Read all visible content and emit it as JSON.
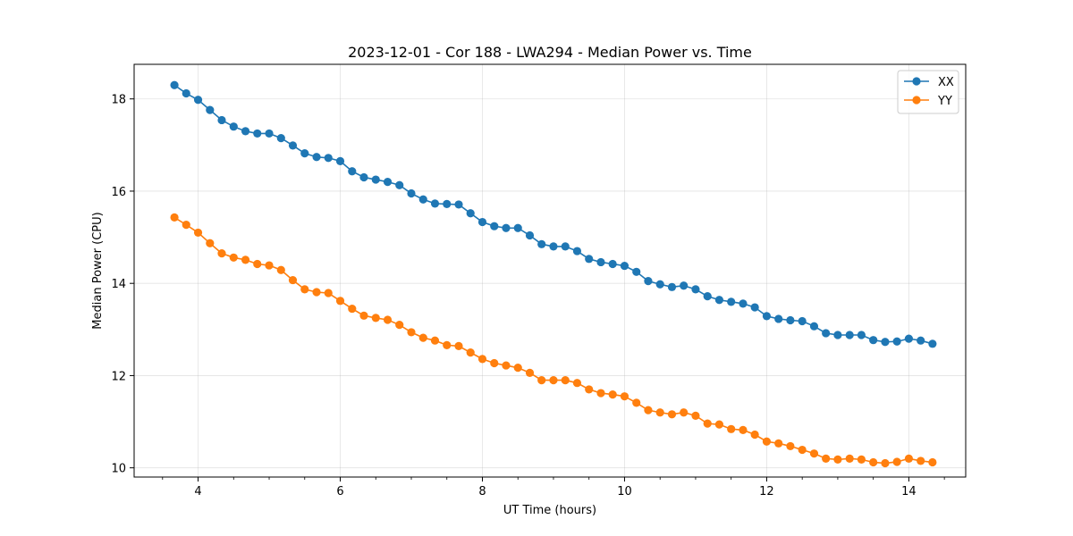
{
  "chart_data": {
    "type": "line",
    "title": "2023-12-01 - Cor 188 - LWA294 - Median Power vs. Time",
    "xlabel": "UT Time (hours)",
    "ylabel": "Median Power (CPU)",
    "xlim": [
      3.1,
      14.8
    ],
    "ylim": [
      9.8,
      18.75
    ],
    "xticks": [
      4,
      6,
      8,
      10,
      12,
      14
    ],
    "xtick_labels": [
      "4",
      "6",
      "8",
      "10",
      "12",
      "14"
    ],
    "yticks": [
      10,
      12,
      14,
      16,
      18
    ],
    "ytick_labels": [
      "10",
      "12",
      "14",
      "16",
      "18"
    ],
    "grid": true,
    "legend_position": "top-right",
    "x": [
      3.667,
      3.833,
      4.0,
      4.167,
      4.333,
      4.5,
      4.667,
      4.833,
      5.0,
      5.167,
      5.333,
      5.5,
      5.667,
      5.833,
      6.0,
      6.167,
      6.333,
      6.5,
      6.667,
      6.833,
      7.0,
      7.167,
      7.333,
      7.5,
      7.667,
      7.833,
      8.0,
      8.167,
      8.333,
      8.5,
      8.667,
      8.833,
      9.0,
      9.167,
      9.333,
      9.5,
      9.667,
      9.833,
      10.0,
      10.167,
      10.333,
      10.5,
      10.667,
      10.833,
      11.0,
      11.167,
      11.333,
      11.5,
      11.667,
      11.833,
      12.0,
      12.167,
      12.333,
      12.5,
      12.667,
      12.833,
      13.0,
      13.167,
      13.333,
      13.5,
      13.667,
      13.833,
      14.0,
      14.167,
      14.333
    ],
    "series": [
      {
        "name": "XX",
        "color": "#1f77b4",
        "values": [
          18.3,
          18.12,
          17.98,
          17.76,
          17.54,
          17.4,
          17.3,
          17.25,
          17.25,
          17.15,
          16.99,
          16.82,
          16.74,
          16.72,
          16.65,
          16.43,
          16.3,
          16.25,
          16.2,
          16.13,
          15.95,
          15.82,
          15.73,
          15.72,
          15.71,
          15.52,
          15.33,
          15.24,
          15.2,
          15.2,
          15.04,
          14.85,
          14.8,
          14.8,
          14.7,
          14.53,
          14.46,
          14.42,
          14.38,
          14.25,
          14.05,
          13.98,
          13.92,
          13.95,
          13.87,
          13.72,
          13.64,
          13.6,
          13.56,
          13.48,
          13.29,
          13.23,
          13.2,
          13.18,
          13.07,
          12.92,
          12.88,
          12.88,
          12.88,
          12.77,
          12.73,
          12.74,
          12.8,
          12.76,
          12.69
        ]
      },
      {
        "name": "YY",
        "color": "#ff7f0e",
        "values": [
          15.43,
          15.27,
          15.1,
          14.87,
          14.65,
          14.56,
          14.51,
          14.42,
          14.39,
          14.29,
          14.07,
          13.87,
          13.81,
          13.79,
          13.62,
          13.45,
          13.3,
          13.25,
          13.21,
          13.1,
          12.94,
          12.82,
          12.76,
          12.66,
          12.64,
          12.5,
          12.36,
          12.27,
          12.22,
          12.17,
          12.06,
          11.9,
          11.9,
          11.9,
          11.84,
          11.7,
          11.62,
          11.59,
          11.55,
          11.41,
          11.25,
          11.2,
          11.16,
          11.2,
          11.13,
          10.96,
          10.94,
          10.84,
          10.82,
          10.72,
          10.57,
          10.53,
          10.47,
          10.39,
          10.31,
          10.2,
          10.18,
          10.2,
          10.18,
          10.12,
          10.1,
          10.13,
          10.2,
          10.15,
          10.12
        ]
      }
    ]
  }
}
